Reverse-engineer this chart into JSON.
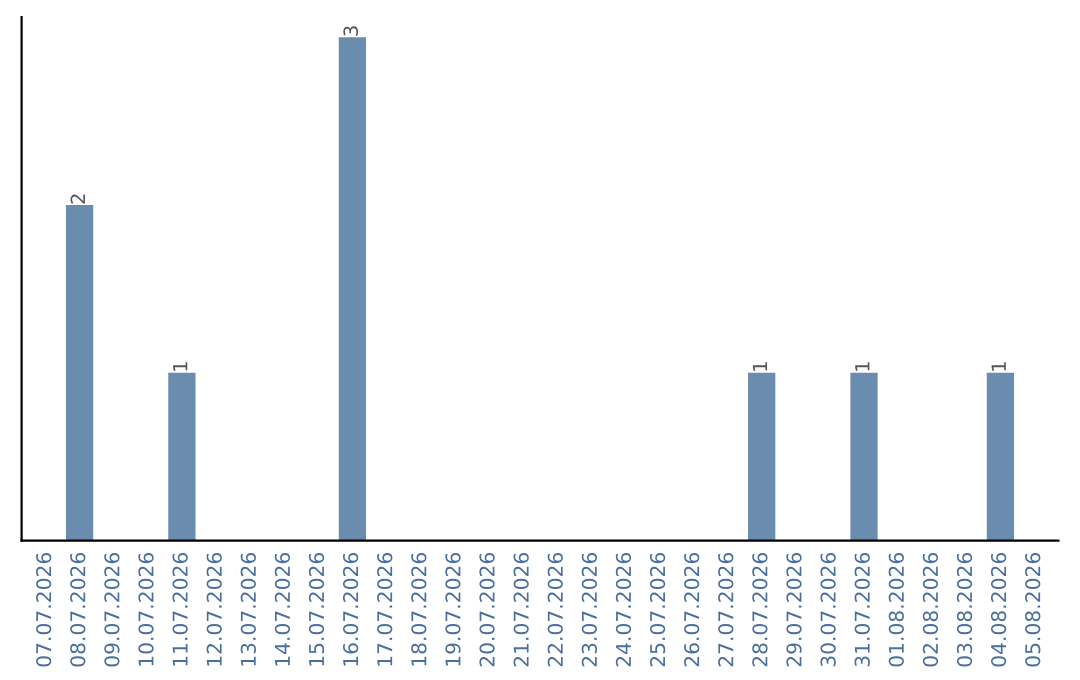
{
  "chart_data": {
    "type": "bar",
    "categories": [
      "07.07.2026",
      "08.07.2026",
      "09.07.2026",
      "10.07.2026",
      "11.07.2026",
      "12.07.2026",
      "13.07.2026",
      "14.07.2026",
      "15.07.2026",
      "16.07.2026",
      "17.07.2026",
      "18.07.2026",
      "19.07.2026",
      "20.07.2026",
      "21.07.2026",
      "22.07.2026",
      "23.07.2026",
      "24.07.2026",
      "25.07.2026",
      "26.07.2026",
      "27.07.2026",
      "28.07.2026",
      "29.07.2026",
      "30.07.2026",
      "31.07.2026",
      "01.08.2026",
      "02.08.2026",
      "03.08.2026",
      "04.08.2026",
      "05.08.2026"
    ],
    "values": [
      0,
      2,
      0,
      0,
      1,
      0,
      0,
      0,
      0,
      3,
      0,
      0,
      0,
      0,
      0,
      0,
      0,
      0,
      0,
      0,
      0,
      1,
      0,
      0,
      1,
      0,
      0,
      0,
      1,
      0
    ],
    "value_labels": [
      null,
      "2",
      null,
      null,
      "1",
      null,
      null,
      null,
      null,
      "3",
      null,
      null,
      null,
      null,
      null,
      null,
      null,
      null,
      null,
      null,
      null,
      "1",
      null,
      null,
      "1",
      null,
      null,
      null,
      "1",
      null
    ],
    "color": "#6a8caf",
    "grid": false,
    "legend": false
  }
}
